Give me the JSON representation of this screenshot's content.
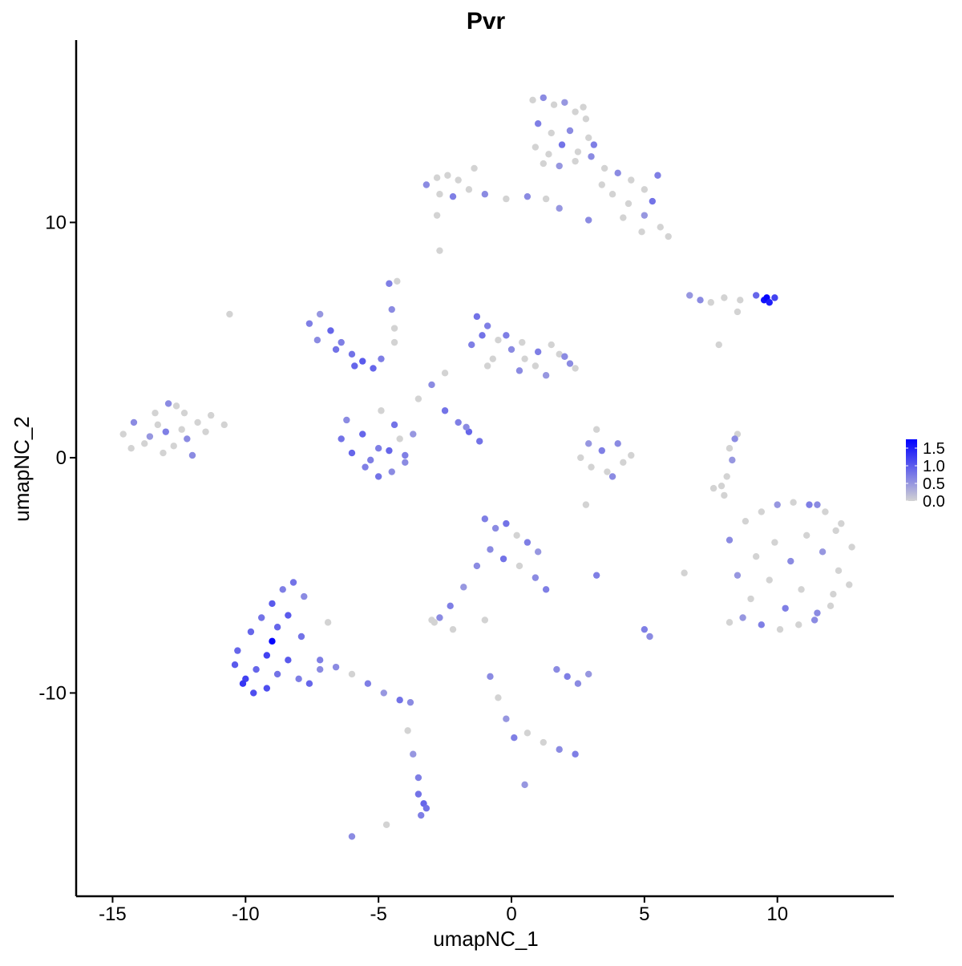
{
  "chart_data": {
    "type": "scatter",
    "title": "Pvr",
    "x_label": "umapNC_1",
    "y_label": "umapNC_2",
    "xlim": [
      -16.37,
      14.38
    ],
    "ylim": [
      -18.64,
      17.75
    ],
    "xticks": [
      -15,
      -10,
      -5,
      0,
      5,
      10
    ],
    "yticks": [
      -10,
      0,
      10
    ],
    "color_low": "#d3d3d3",
    "color_high": "#0000ff",
    "colorlim": [
      0,
      1.75
    ],
    "colorbar_ticks": [
      {
        "value": 0,
        "label": "0.0"
      },
      {
        "value": 0.5,
        "label": "0.5"
      },
      {
        "value": 1,
        "label": "1.0"
      },
      {
        "value": 1.5,
        "label": "1.5"
      }
    ],
    "x": [
      0.8,
      1.2,
      1.6,
      2.0,
      2.4,
      2.8,
      1.0,
      1.5,
      2.2,
      2.9,
      0.9,
      1.4,
      1.9,
      2.5,
      3.0,
      1.2,
      1.8,
      2.4,
      2.7,
      3.1,
      3.5,
      4.0,
      4.5,
      5.0,
      5.5,
      3.8,
      4.4,
      5.0,
      5.6,
      5.9,
      -3.2,
      -2.8,
      -2.4,
      -2.0,
      -2.7,
      -2.2,
      -1.6,
      -1.0,
      -0.2,
      0.6,
      1.3,
      1.8,
      2.9,
      3.4,
      4.2,
      4.9,
      5.3,
      -2.8,
      -2.7,
      -1.4,
      6.7,
      7.1,
      7.5,
      8.0,
      8.6,
      9.2,
      9.5,
      9.6,
      9.7,
      9.9,
      -14.6,
      -14.2,
      -13.8,
      -13.4,
      -13.0,
      -12.6,
      -12.2,
      -11.8,
      -11.3,
      -10.8,
      -14.3,
      -13.6,
      -13.1,
      -12.7,
      -12.3,
      -12.0,
      -13.3,
      -12.9,
      -11.5,
      -12.4,
      -7.6,
      -7.2,
      -6.8,
      -6.4,
      -6.0,
      -5.6,
      -5.2,
      -7.3,
      -6.6,
      -5.9,
      -6.4,
      -6.0,
      -5.5,
      -5.0,
      -4.5,
      -4.0,
      -3.7,
      -6.2,
      -5.6,
      -5.0,
      -4.4,
      -4.9,
      -5.3,
      -4.2,
      -4.6,
      -4.0,
      -3.5,
      -3.0,
      -2.5,
      -4.9,
      -4.4,
      -4.5,
      -4.6,
      -4.3,
      -4.4,
      -2.5,
      -2.0,
      -1.6,
      -1.2,
      -1.7,
      -1.3,
      -0.9,
      -0.5,
      0,
      0.5,
      1.0,
      1.5,
      2.0,
      2.4,
      -1.1,
      -0.7,
      -0.2,
      0.3,
      0.9,
      1.3,
      1.8,
      2.2,
      -1.5,
      -0.9,
      0.4,
      2.6,
      3.0,
      3.4,
      3.8,
      4.2,
      4.5,
      3.2,
      2.9,
      3.6,
      4.0,
      8.0,
      8.1,
      8.3,
      8.4,
      8.2,
      7.9,
      8.5,
      11.5,
      7.6,
      12.2,
      8.2,
      8.8,
      9.4,
      10.0,
      10.6,
      11.2,
      11.8,
      12.4,
      12.8,
      8.5,
      9.2,
      9.9,
      10.5,
      11.1,
      11.7,
      12.3,
      12.7,
      9.0,
      9.7,
      10.3,
      10.9,
      11.5,
      12.1,
      8.2,
      8.7,
      9.4,
      10.1,
      10.8,
      11.4,
      12.0,
      -10.4,
      -10.0,
      -9.6,
      -9.2,
      -8.8,
      -8.4,
      -8.0,
      -7.6,
      -7.2,
      -9.0,
      -9.8,
      -9.4,
      -9.0,
      -8.6,
      -8.2,
      -7.8,
      -8.4,
      -8.8,
      -9.2,
      -7.9,
      -7.2,
      -6.6,
      -6.0,
      -5.4,
      -4.8,
      -4.2,
      -3.8,
      -3.9,
      -3.7,
      -3.5,
      -3.5,
      -3.3,
      -3.4,
      -3.2,
      -6.0,
      -4.7,
      -10.1,
      -9.7,
      -10.3,
      -6.9,
      -1.0,
      -0.6,
      -0.2,
      0.2,
      0.6,
      1.0,
      -0.8,
      -0.3,
      0.3,
      0.9,
      -1.3,
      -1.8,
      -2.3,
      -2.7,
      -2.9,
      1.3,
      1.7,
      2.1,
      2.5,
      2.9,
      -0.8,
      -0.5,
      -0.2,
      0.1,
      0.6,
      1.2,
      1.8,
      2.4,
      0.5,
      5.0,
      -10.6,
      -3.0,
      5.2,
      7.8,
      8.5,
      2.8,
      -2.2,
      6.5,
      3.2,
      -1.0
    ],
    "y": [
      15.2,
      15.3,
      15.0,
      15.1,
      14.7,
      14.4,
      14.2,
      13.8,
      13.9,
      13.6,
      13.2,
      12.9,
      13.3,
      13.0,
      12.8,
      12.5,
      12.4,
      12.6,
      14.9,
      13.3,
      12.3,
      12.1,
      11.8,
      11.4,
      12.0,
      11.2,
      10.8,
      10.3,
      9.8,
      9.4,
      11.6,
      11.9,
      12.0,
      11.8,
      11.2,
      11.1,
      11.4,
      11.2,
      11.0,
      11.1,
      11.0,
      10.6,
      10.1,
      11.6,
      10.2,
      9.6,
      10.9,
      10.3,
      8.8,
      12.3,
      6.9,
      6.7,
      6.6,
      6.8,
      6.7,
      6.9,
      6.7,
      6.8,
      6.6,
      6.8,
      1.0,
      1.5,
      0.6,
      1.9,
      1.1,
      2.2,
      0.8,
      1.5,
      1.8,
      1.4,
      0.4,
      0.9,
      0.2,
      0.5,
      1.9,
      0.1,
      1.4,
      2.3,
      1.1,
      1.2,
      5.7,
      6.1,
      5.4,
      4.9,
      4.4,
      4.1,
      3.8,
      5.0,
      4.6,
      3.9,
      0.8,
      0.2,
      -0.4,
      -0.8,
      -0.6,
      0.1,
      1.0,
      1.6,
      1.0,
      0.4,
      1.4,
      2.0,
      -0.1,
      0.8,
      0.3,
      -0.2,
      2.5,
      3.1,
      3.6,
      4.2,
      5.5,
      6.3,
      7.4,
      7.5,
      4.9,
      2.0,
      1.5,
      1.1,
      0.7,
      1.3,
      6.0,
      5.6,
      5.0,
      4.6,
      4.2,
      4.5,
      4.8,
      4.3,
      3.8,
      5.2,
      4.2,
      5.2,
      3.7,
      3.9,
      3.5,
      4.4,
      4.0,
      4.8,
      3.9,
      4.9,
      0.0,
      -0.4,
      0.3,
      -0.8,
      -0.2,
      0.1,
      1.2,
      0.6,
      -0.6,
      0.6,
      -1.6,
      -0.8,
      -0.1,
      0.8,
      0.4,
      -1.2,
      1.0,
      -2.0,
      -1.3,
      -3.1,
      -3.5,
      -2.7,
      -2.3,
      -2.0,
      -1.9,
      -2.0,
      -2.3,
      -2.8,
      -3.8,
      -5.0,
      -4.2,
      -3.6,
      -4.4,
      -3.3,
      -4.0,
      -4.8,
      -5.4,
      -6.0,
      -5.2,
      -6.4,
      -5.6,
      -6.6,
      -5.8,
      -7.0,
      -6.8,
      -7.1,
      -7.3,
      -7.1,
      -6.9,
      -6.3,
      -8.8,
      -9.4,
      -9.0,
      -9.8,
      -9.2,
      -8.6,
      -9.4,
      -9.6,
      -9.0,
      -7.8,
      -7.4,
      -6.8,
      -6.2,
      -5.6,
      -5.3,
      -5.9,
      -6.7,
      -7.2,
      -8.4,
      -7.6,
      -8.6,
      -8.9,
      -9.2,
      -9.6,
      -10.0,
      -10.3,
      -10.4,
      -11.6,
      -12.6,
      -13.6,
      -14.3,
      -14.7,
      -15.2,
      -14.9,
      -16.1,
      -15.6,
      -9.6,
      -10.0,
      -8.2,
      -7.0,
      -2.6,
      -3.0,
      -2.8,
      -3.3,
      -3.6,
      -4.0,
      -3.9,
      -4.3,
      -4.6,
      -5.1,
      -4.6,
      -5.5,
      -6.3,
      -6.8,
      -7.0,
      -5.6,
      -9.0,
      -9.3,
      -9.6,
      -9.2,
      -9.3,
      -10.2,
      -11.1,
      -11.9,
      -11.7,
      -12.1,
      -12.4,
      -12.6,
      -13.9,
      -7.3,
      6.1,
      -6.9,
      -7.6,
      4.8,
      6.2,
      -2.0,
      -7.3,
      -4.9,
      -5.0,
      -6.9
    ],
    "color_values": [
      0,
      0.6,
      0,
      0.5,
      0,
      0,
      0.7,
      0,
      0.6,
      0,
      0,
      0,
      0.8,
      0,
      0.6,
      0,
      0.5,
      0,
      0,
      0.7,
      0,
      0.6,
      0,
      0,
      0.7,
      0,
      0,
      0.5,
      0,
      0,
      0.6,
      0,
      0,
      0,
      0,
      0.7,
      0,
      0.6,
      0,
      0.6,
      0,
      0.5,
      0.6,
      0,
      0,
      0,
      0.8,
      0,
      0,
      0,
      0.5,
      0.6,
      0,
      0,
      0,
      0.9,
      1.6,
      1.7,
      1.5,
      1.2,
      0,
      0.6,
      0,
      0,
      0.7,
      0,
      0.6,
      0,
      0,
      0,
      0,
      0.5,
      0,
      0,
      0,
      0.6,
      0,
      0.6,
      0,
      0,
      0.7,
      0.5,
      0.9,
      0.7,
      0.8,
      1.0,
      0.9,
      0.6,
      0.8,
      0.9,
      0.8,
      0.9,
      0.7,
      0.8,
      0.6,
      0.7,
      0.5,
      0.6,
      0.9,
      0.7,
      0.8,
      0,
      0.7,
      0,
      0.9,
      0.6,
      0,
      0.6,
      0,
      0.7,
      0,
      0.6,
      0.7,
      0,
      0,
      0.8,
      0.7,
      0.9,
      0.8,
      0.6,
      0.8,
      0.7,
      0,
      0.6,
      0,
      0.7,
      0,
      0.6,
      0,
      0.8,
      0,
      0.7,
      0.6,
      0,
      0.5,
      0,
      0.6,
      0.7,
      0,
      0,
      0,
      0,
      0.7,
      0.6,
      0,
      0,
      0,
      0.5,
      0,
      0.6,
      0,
      0,
      0.5,
      0.6,
      0,
      0,
      0,
      0.6,
      0,
      0,
      0.6,
      0,
      0,
      0.5,
      0,
      0.7,
      0,
      0,
      0,
      0.5,
      0,
      0,
      0.6,
      0,
      0.5,
      0,
      0,
      0,
      0,
      0.7,
      0,
      0.6,
      0,
      0,
      0.5,
      0.7,
      0,
      0,
      0.6,
      0,
      1.0,
      1.2,
      0.9,
      1.1,
      0.8,
      1.0,
      0.7,
      0.9,
      0.6,
      1.7,
      0.9,
      0.8,
      1.0,
      0.7,
      0.8,
      0.6,
      1.0,
      0.9,
      1.2,
      0.8,
      0.7,
      0.6,
      0,
      0.7,
      0.5,
      0.8,
      0.6,
      0,
      0.5,
      0.7,
      0.8,
      0.9,
      0.7,
      0.8,
      0.6,
      0,
      1.3,
      1.1,
      0.9,
      0,
      0.7,
      0.6,
      0.8,
      0,
      0.7,
      0.5,
      0.6,
      0.8,
      0,
      0.6,
      0.6,
      0.5,
      0.7,
      0.6,
      0,
      0.7,
      0.6,
      0.7,
      0.6,
      0.5,
      0.6,
      0,
      0.5,
      0.7,
      0,
      0,
      0.6,
      0.7,
      0.5,
      0.7,
      0,
      0,
      0.6,
      0,
      0,
      0,
      0,
      0,
      0.7,
      0
    ]
  }
}
